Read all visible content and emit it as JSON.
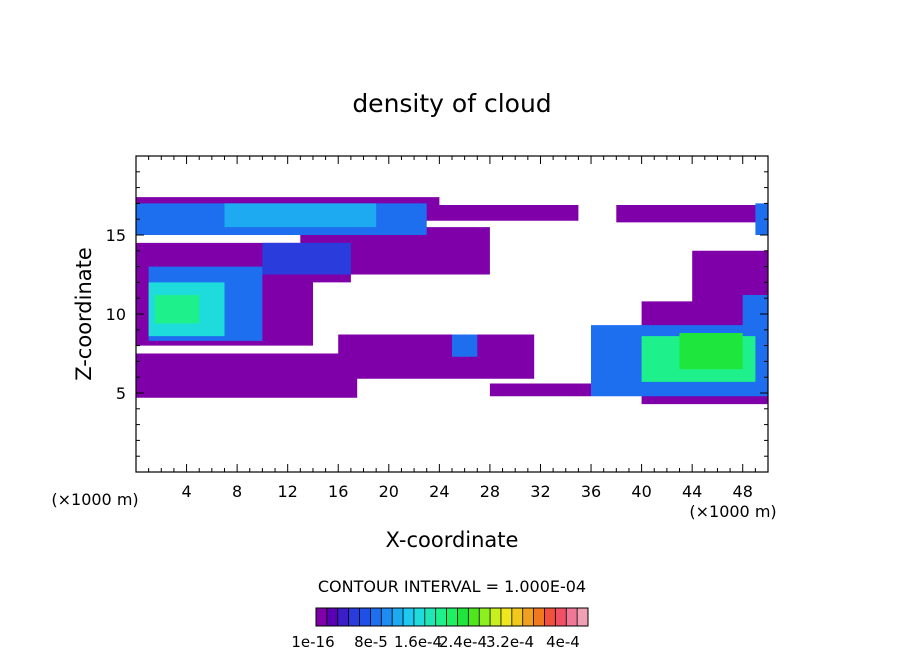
{
  "chart_data": {
    "type": "heatmap",
    "title": "density of cloud",
    "xlabel": "X-coordinate",
    "ylabel": "Z-coordinate",
    "x_unit": "(×1000 m)",
    "y_unit": "(×1000 m)",
    "xlim": [
      0,
      50
    ],
    "ylim": [
      0,
      20
    ],
    "x_ticks": [
      "4",
      "8",
      "12",
      "16",
      "20",
      "24",
      "28",
      "32",
      "36",
      "40",
      "44",
      "48"
    ],
    "y_ticks": [
      "5",
      "10",
      "15"
    ],
    "contour_interval_text": "CONTOUR INTERVAL = 1.000E-04",
    "colorbar_labels": [
      "1e-16",
      "8e-5",
      "1.6e-4",
      "2.4e-4",
      "3.2e-4",
      "4e-4"
    ],
    "colorbar_colors": [
      "#7f00a8",
      "#5a00b4",
      "#3c1ec8",
      "#2a3cdc",
      "#1e50e6",
      "#1e6ef0",
      "#1e8cf0",
      "#1eaaf0",
      "#1ec8f0",
      "#1edcdc",
      "#1ee6b4",
      "#1ef08c",
      "#1ef064",
      "#1ee63c",
      "#50e61e",
      "#8cf01e",
      "#c8f01e",
      "#f0e61e",
      "#f0c81e",
      "#f0a01e",
      "#f0781e",
      "#f0503c",
      "#f05064",
      "#f07896",
      "#f0a0b4"
    ],
    "regions": [
      {
        "level": 1,
        "x": [
          0,
          24,
          24,
          0
        ],
        "z": [
          17.4,
          17.4,
          16.6,
          15.5
        ]
      },
      {
        "level": 1,
        "x": [
          0,
          35
        ],
        "z": [
          16.4,
          16.4
        ]
      },
      {
        "level": 1,
        "x": [
          0,
          14,
          14,
          0
        ],
        "z": [
          14.5,
          14.5,
          8.0,
          8.0
        ]
      },
      {
        "level": 1,
        "x": [
          14,
          17,
          17,
          14
        ],
        "z": [
          14.0,
          14.0,
          12.0,
          12.0
        ]
      },
      {
        "level": 1,
        "x": [
          13,
          28,
          28,
          13
        ],
        "z": [
          15.5,
          15.5,
          12.5,
          12.5
        ]
      },
      {
        "level": 1,
        "x": [
          0,
          17.5,
          17.5,
          0
        ],
        "z": [
          7.5,
          7.5,
          4.7,
          4.7
        ]
      },
      {
        "level": 1,
        "x": [
          16,
          31.5,
          31.5,
          16
        ],
        "z": [
          8.7,
          8.7,
          5.9,
          5.9
        ]
      },
      {
        "level": 1,
        "x": [
          28,
          36,
          36,
          28
        ],
        "z": [
          5.6,
          5.6,
          4.8,
          4.8
        ]
      },
      {
        "level": 1,
        "x": [
          38,
          50,
          50,
          38
        ],
        "z": [
          16.9,
          16.9,
          15.8,
          15.8
        ]
      },
      {
        "level": 1,
        "x": [
          44,
          50,
          50,
          44
        ],
        "z": [
          14.0,
          14.0,
          10.5,
          10.5
        ]
      },
      {
        "level": 1,
        "x": [
          40,
          50,
          50,
          40
        ],
        "z": [
          10.8,
          10.8,
          4.3,
          4.3
        ]
      },
      {
        "level": 6,
        "x": [
          0,
          23,
          23,
          0
        ],
        "z": [
          17.0,
          17.0,
          15.0,
          15.0
        ]
      },
      {
        "level": 8,
        "x": [
          7,
          19,
          19,
          7
        ],
        "z": [
          17.0,
          17.0,
          15.5,
          15.5
        ]
      },
      {
        "level": 4,
        "x": [
          10,
          17,
          17,
          10
        ],
        "z": [
          14.5,
          14.5,
          12.5,
          12.5
        ]
      },
      {
        "level": 6,
        "x": [
          1,
          10,
          10,
          1
        ],
        "z": [
          13.0,
          13.0,
          8.3,
          8.3
        ]
      },
      {
        "level": 10,
        "x": [
          1,
          7,
          7,
          1
        ],
        "z": [
          12.0,
          12.0,
          8.6,
          8.6
        ]
      },
      {
        "level": 12,
        "x": [
          1.5,
          5,
          5,
          1.5
        ],
        "z": [
          11.2,
          11.2,
          9.4,
          9.4
        ]
      },
      {
        "level": 6,
        "x": [
          25,
          27,
          27,
          25
        ],
        "z": [
          8.7,
          8.7,
          7.3,
          7.3
        ]
      },
      {
        "level": 6,
        "x": [
          36,
          50,
          50,
          36
        ],
        "z": [
          9.3,
          9.3,
          4.8,
          4.8
        ]
      },
      {
        "level": 12,
        "x": [
          40,
          49,
          49,
          40
        ],
        "z": [
          8.6,
          8.6,
          5.7,
          5.7
        ]
      },
      {
        "level": 14,
        "x": [
          43,
          48,
          48,
          43
        ],
        "z": [
          8.8,
          8.8,
          6.5,
          6.5
        ]
      },
      {
        "level": 6,
        "x": [
          49,
          50,
          50,
          49
        ],
        "z": [
          17.0,
          17.0,
          15.0,
          15.0
        ]
      },
      {
        "level": 6,
        "x": [
          48,
          50,
          50,
          48
        ],
        "z": [
          11.2,
          11.2,
          9.2,
          9.2
        ]
      }
    ]
  }
}
